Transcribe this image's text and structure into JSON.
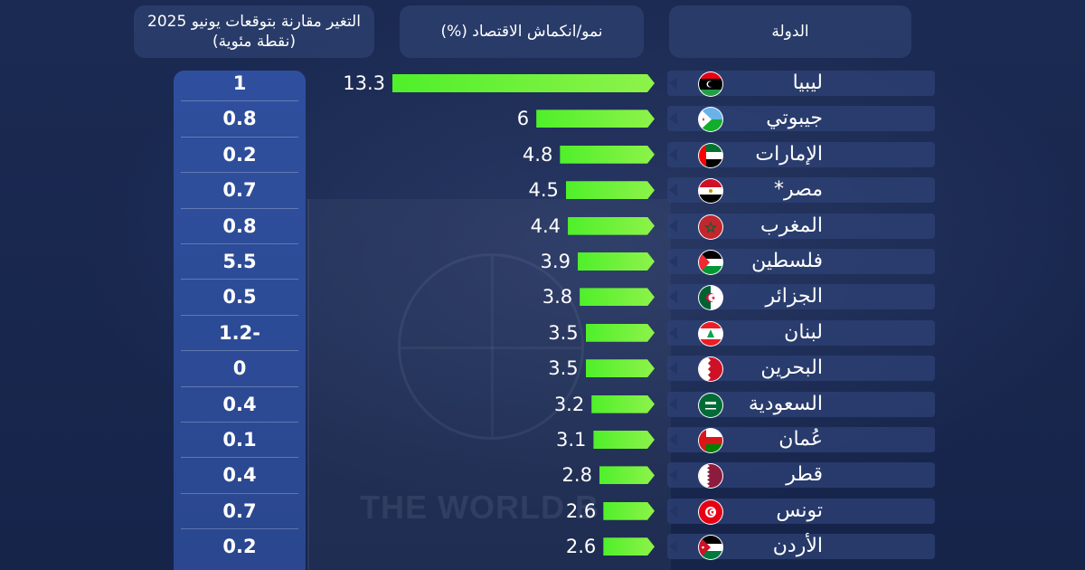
{
  "headers": {
    "country": "الدولة",
    "growth": "نمو/انكماش الاقتصاد (%)",
    "change": "التغير مقارنة بتوقعات يونيو 2025 (نقطة مئوية)"
  },
  "background": {
    "watermark": "THE WORLD B"
  },
  "colors": {
    "background": "#17254a",
    "bar_green": "#4ff02a",
    "change_column": "#2f4f9e",
    "row_bar": "#2e4276"
  },
  "chart_data": {
    "type": "bar",
    "orientation": "horizontal",
    "xlim": [
      0,
      13.3
    ],
    "categories": [
      "ليبيا",
      "جيبوتي",
      "الإمارات",
      "مصر*",
      "المغرب",
      "فلسطين",
      "الجزائر",
      "لبنان",
      "البحرين",
      "السعودية",
      "عُمان",
      "قطر",
      "تونس",
      "الأردن"
    ],
    "values": [
      13.3,
      6,
      4.8,
      4.5,
      4.4,
      3.9,
      3.8,
      3.5,
      3.5,
      3.2,
      3.1,
      2.8,
      2.6,
      2.6
    ],
    "value_labels": [
      "13.3",
      "6",
      "4.8",
      "4.5",
      "4.4",
      "3.9",
      "3.8",
      "3.5",
      "3.5",
      "3.2",
      "3.1",
      "2.8",
      "2.6",
      "2.6"
    ],
    "change_labels": [
      "1",
      "0.8",
      "0.2",
      "0.7",
      "0.8",
      "5.5",
      "0.5",
      "1.2-",
      "0",
      "0.4",
      "0.1",
      "0.4",
      "0.7",
      "0.2"
    ],
    "flag_icons": [
      "libya-flag-icon",
      "djibouti-flag-icon",
      "uae-flag-icon",
      "egypt-flag-icon",
      "morocco-flag-icon",
      "palestine-flag-icon",
      "algeria-flag-icon",
      "lebanon-flag-icon",
      "bahrain-flag-icon",
      "saudi-flag-icon",
      "oman-flag-icon",
      "qatar-flag-icon",
      "tunisia-flag-icon",
      "jordan-flag-icon"
    ]
  }
}
